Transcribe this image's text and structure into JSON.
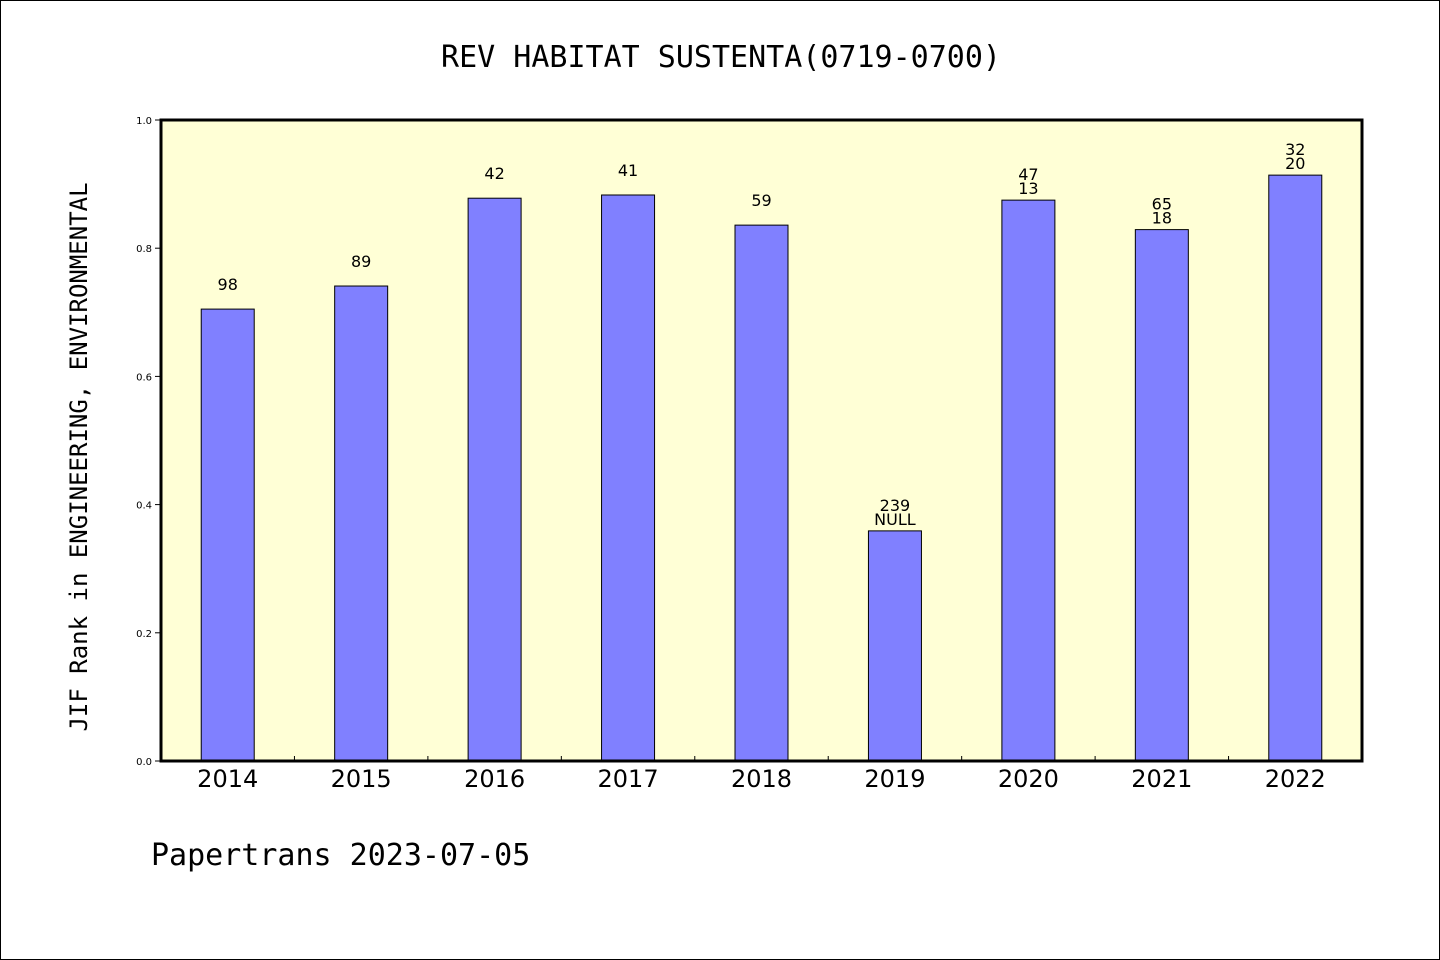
{
  "chart_data": {
    "type": "bar",
    "title": "REV HABITAT SUSTENTA(0719-0700)",
    "ylabel": "JIF Rank in ENGINEERING, ENVIRONMENTAL",
    "xlabel": "",
    "ylim": [
      0,
      1.0
    ],
    "yticks": [
      "0.0",
      "0.2",
      "0.4",
      "0.6",
      "0.8",
      "1.0"
    ],
    "categories": [
      "2014",
      "2015",
      "2016",
      "2017",
      "2018",
      "2019",
      "2020",
      "2021",
      "2022"
    ],
    "values": [
      0.705,
      0.741,
      0.878,
      0.883,
      0.836,
      0.359,
      0.875,
      0.829,
      0.914
    ],
    "labels_top": [
      "98",
      "89",
      "42",
      "41",
      "59",
      "239",
      "47",
      "65",
      "32"
    ],
    "labels_second": [
      "",
      "",
      "",
      "",
      "",
      "NULL",
      "13",
      "18",
      "20"
    ],
    "colors": {
      "plot_bg": "#ffffd6",
      "bar": "#8080ff"
    }
  },
  "footer": "Papertrans 2023-07-05"
}
